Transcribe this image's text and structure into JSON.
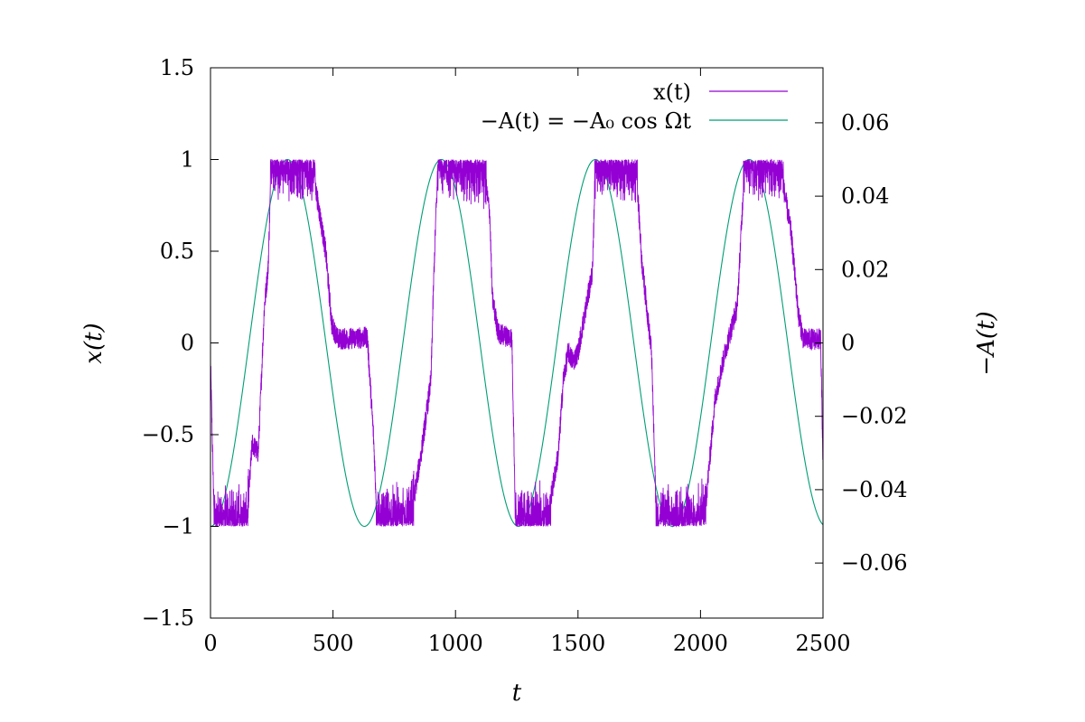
{
  "chart_data": {
    "type": "line",
    "title": "",
    "xlabel": "t",
    "ylabel": "x(t)",
    "y2label": "−A(t)",
    "xlim": [
      0,
      2500
    ],
    "ylim": [
      -1.5,
      1.5
    ],
    "y2lim": [
      -0.075,
      0.075
    ],
    "x_ticks": [
      0,
      500,
      1000,
      1500,
      2000,
      2500
    ],
    "x_tick_labels": [
      "0",
      "500",
      "1000",
      "1500",
      "2000",
      "2500"
    ],
    "y_ticks": [
      -1.5,
      -1,
      -0.5,
      0,
      0.5,
      1,
      1.5
    ],
    "y_tick_labels": [
      "−1.5",
      "−1",
      "−0.5",
      "0",
      "0.5",
      "1",
      "1.5"
    ],
    "y2_ticks": [
      -0.06,
      -0.04,
      -0.02,
      0,
      0.02,
      0.04,
      0.06
    ],
    "y2_tick_labels": [
      "−0.06",
      "−0.04",
      "−0.02",
      "0",
      "0.02",
      "0.04",
      "0.06"
    ],
    "grid": false,
    "legend_position": "top-right",
    "colors": {
      "x": "#9400d3",
      "A": "#009e73"
    },
    "series": [
      {
        "name": "x(t)",
        "axis": "left",
        "color": "#9400d3",
        "points": [
          [
            0,
            -0.1
          ],
          [
            15,
            -0.96
          ],
          [
            150,
            -0.95
          ],
          [
            170,
            -0.55
          ],
          [
            195,
            -0.6
          ],
          [
            220,
            0.2
          ],
          [
            235,
            0.4
          ],
          [
            245,
            0.85
          ],
          [
            260,
            0.97
          ],
          [
            420,
            0.92
          ],
          [
            440,
            0.75
          ],
          [
            470,
            0.5
          ],
          [
            495,
            0.1
          ],
          [
            520,
            0.02
          ],
          [
            640,
            0.03
          ],
          [
            665,
            -0.5
          ],
          [
            680,
            -0.97
          ],
          [
            820,
            -0.93
          ],
          [
            860,
            -0.6
          ],
          [
            900,
            -0.2
          ],
          [
            910,
            0.3
          ],
          [
            920,
            0.7
          ],
          [
            930,
            0.97
          ],
          [
            1120,
            0.9
          ],
          [
            1140,
            0.7
          ],
          [
            1150,
            0.25
          ],
          [
            1175,
            0.05
          ],
          [
            1230,
            0.03
          ],
          [
            1245,
            -0.97
          ],
          [
            1380,
            -0.92
          ],
          [
            1420,
            -0.6
          ],
          [
            1440,
            -0.2
          ],
          [
            1460,
            -0.05
          ],
          [
            1480,
            -0.1
          ],
          [
            1500,
            -0.05
          ],
          [
            1560,
            0.4
          ],
          [
            1570,
            0.97
          ],
          [
            1740,
            0.9
          ],
          [
            1760,
            0.45
          ],
          [
            1800,
            -0.05
          ],
          [
            1820,
            -0.98
          ],
          [
            2020,
            -0.9
          ],
          [
            2060,
            -0.3
          ],
          [
            2100,
            -0.05
          ],
          [
            2150,
            0.2
          ],
          [
            2180,
            0.97
          ],
          [
            2330,
            0.92
          ],
          [
            2370,
            0.6
          ],
          [
            2400,
            0.15
          ],
          [
            2420,
            0.02
          ],
          [
            2490,
            0.02
          ],
          [
            2500,
            -0.65
          ]
        ]
      },
      {
        "name": "−A(t) = −A₀ cos Ωt",
        "axis": "right",
        "color": "#009e73",
        "amplitude": 0.05,
        "period": 628.3
      }
    ]
  }
}
